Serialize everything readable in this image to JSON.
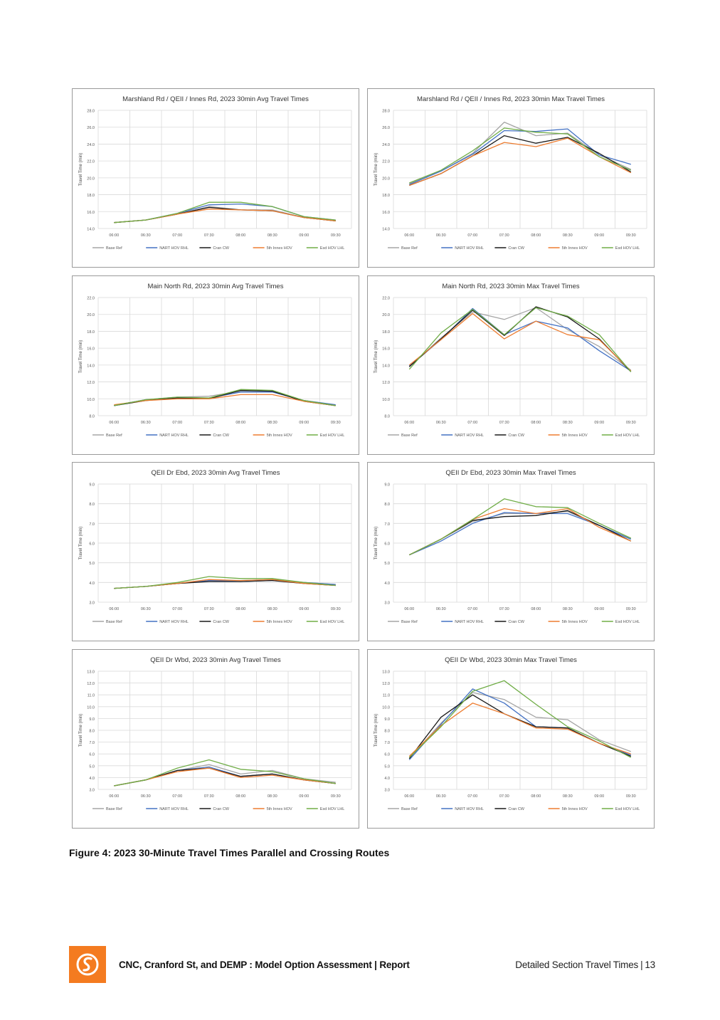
{
  "legend_colors": {
    "Base Ref": "#a5a5a5",
    "NART HOV RHL": "#4472c4",
    "Cran CW": "#1a1a1a",
    "5th Innes HOV": "#ed7d31",
    "Esd HOV LHL": "#70ad47"
  },
  "chart_data": [
    {
      "type": "line",
      "title": "Marshland Rd / QEII / Innes Rd, 2023 30min Avg Travel Times",
      "ylabel": "Travel Time (min)",
      "categories": [
        "06:00",
        "06:30",
        "07:00",
        "07:30",
        "08:00",
        "08:30",
        "09:00",
        "09:30"
      ],
      "ylim": [
        14,
        28
      ],
      "ystep": 2,
      "ydecimals": 1,
      "series": [
        {
          "name": "Base Ref",
          "values": [
            14.7,
            15.0,
            15.7,
            16.6,
            16.2,
            16.2,
            15.3,
            14.9
          ]
        },
        {
          "name": "NART HOV RHL",
          "values": [
            14.7,
            15.0,
            15.8,
            16.8,
            16.9,
            16.6,
            15.4,
            15.0
          ]
        },
        {
          "name": "Cran CW",
          "values": [
            14.7,
            15.0,
            15.7,
            16.5,
            16.2,
            16.1,
            15.3,
            14.9
          ]
        },
        {
          "name": "5th Innes HOV",
          "values": [
            14.7,
            15.0,
            15.7,
            16.3,
            16.2,
            16.1,
            15.3,
            14.9
          ]
        },
        {
          "name": "Esd HOV LHL",
          "values": [
            14.7,
            15.0,
            15.8,
            17.1,
            17.1,
            16.6,
            15.4,
            15.0
          ]
        }
      ]
    },
    {
      "type": "line",
      "title": "Marshland Rd / QEII / Innes Rd, 2023 30min Max Travel Times",
      "ylabel": "Travel Time (min)",
      "categories": [
        "06:00",
        "06:30",
        "07:00",
        "07:30",
        "08:00",
        "08:30",
        "09:00",
        "09:30"
      ],
      "ylim": [
        14,
        28
      ],
      "ystep": 2,
      "ydecimals": 1,
      "series": [
        {
          "name": "Base Ref",
          "values": [
            19.3,
            20.8,
            22.9,
            26.6,
            25.0,
            25.3,
            22.7,
            21.0
          ]
        },
        {
          "name": "NART HOV RHL",
          "values": [
            19.2,
            20.8,
            22.8,
            25.6,
            25.5,
            25.8,
            22.7,
            21.6
          ]
        },
        {
          "name": "Cran CW",
          "values": [
            19.1,
            20.5,
            22.6,
            25.0,
            24.1,
            24.8,
            22.9,
            20.7
          ]
        },
        {
          "name": "5th Innes HOV",
          "values": [
            19.1,
            20.5,
            22.6,
            24.2,
            23.7,
            24.7,
            22.5,
            20.6
          ]
        },
        {
          "name": "Esd HOV LHL",
          "values": [
            19.4,
            20.9,
            23.2,
            25.9,
            25.4,
            25.2,
            22.5,
            20.9
          ]
        }
      ]
    },
    {
      "type": "line",
      "title": "Main North Rd, 2023 30min Avg Travel Times",
      "ylabel": "Travel Time (min)",
      "categories": [
        "06:00",
        "06:30",
        "07:00",
        "07:30",
        "08:00",
        "08:30",
        "09:00",
        "09:30"
      ],
      "ylim": [
        8,
        22
      ],
      "ystep": 2,
      "ydecimals": 1,
      "series": [
        {
          "name": "Base Ref",
          "values": [
            9.2,
            9.9,
            10.2,
            10.3,
            10.9,
            10.9,
            9.8,
            9.2
          ]
        },
        {
          "name": "NART HOV RHL",
          "values": [
            9.2,
            9.9,
            10.1,
            10.1,
            10.8,
            10.8,
            9.8,
            9.3
          ]
        },
        {
          "name": "Cran CW",
          "values": [
            9.2,
            9.8,
            10.1,
            10.0,
            11.0,
            10.9,
            9.7,
            9.2
          ]
        },
        {
          "name": "5th Innes HOV",
          "values": [
            9.3,
            9.8,
            10.0,
            10.0,
            10.5,
            10.5,
            9.7,
            9.2
          ]
        },
        {
          "name": "Esd HOV LHL",
          "values": [
            9.2,
            9.9,
            10.2,
            10.1,
            11.1,
            11.0,
            9.8,
            9.2
          ]
        }
      ]
    },
    {
      "type": "line",
      "title": "Main North Rd, 2023 30min Max Travel Times",
      "ylabel": "Travel Time (min)",
      "categories": [
        "06:00",
        "06:30",
        "07:00",
        "07:30",
        "08:00",
        "08:30",
        "09:00",
        "09:30"
      ],
      "ylim": [
        8,
        22
      ],
      "ystep": 2,
      "ydecimals": 1,
      "series": [
        {
          "name": "Base Ref",
          "values": [
            13.8,
            17.2,
            20.3,
            19.4,
            20.8,
            18.2,
            16.2,
            13.4
          ]
        },
        {
          "name": "NART HOV RHL",
          "values": [
            13.9,
            17.0,
            20.7,
            17.6,
            19.2,
            18.4,
            15.7,
            13.3
          ]
        },
        {
          "name": "Cran CW",
          "values": [
            13.8,
            17.1,
            20.5,
            17.5,
            20.9,
            19.7,
            17.1,
            13.2
          ]
        },
        {
          "name": "5th Innes HOV",
          "values": [
            14.0,
            17.0,
            20.1,
            17.1,
            19.2,
            17.6,
            17.0,
            13.3
          ]
        },
        {
          "name": "Esd HOV LHL",
          "values": [
            13.5,
            17.8,
            20.6,
            17.6,
            20.8,
            19.8,
            17.6,
            13.2
          ]
        }
      ]
    },
    {
      "type": "line",
      "title": "QEII Dr Ebd, 2023 30min Avg Travel Times",
      "ylabel": "Travel Time (min)",
      "categories": [
        "06:00",
        "06:30",
        "07:00",
        "07:30",
        "08:00",
        "08:30",
        "09:00",
        "09:30"
      ],
      "ylim": [
        3,
        9
      ],
      "ystep": 1,
      "ydecimals": 1,
      "series": [
        {
          "name": "Base Ref",
          "values": [
            3.7,
            3.8,
            3.95,
            4.1,
            4.1,
            4.15,
            4.0,
            3.9
          ]
        },
        {
          "name": "NART HOV RHL",
          "values": [
            3.7,
            3.8,
            3.95,
            4.1,
            4.05,
            4.1,
            4.0,
            3.9
          ]
        },
        {
          "name": "Cran CW",
          "values": [
            3.7,
            3.8,
            3.95,
            4.05,
            4.05,
            4.1,
            3.95,
            3.85
          ]
        },
        {
          "name": "5th Innes HOV",
          "values": [
            3.7,
            3.8,
            3.95,
            4.15,
            4.1,
            4.15,
            3.95,
            3.85
          ]
        },
        {
          "name": "Esd HOV LHL",
          "values": [
            3.7,
            3.8,
            4.0,
            4.3,
            4.2,
            4.2,
            4.0,
            3.85
          ]
        }
      ]
    },
    {
      "type": "line",
      "title": "QEII Dr Ebd, 2023 30min Max Travel Times",
      "ylabel": "Travel Time (min)",
      "categories": [
        "06:00",
        "06:30",
        "07:00",
        "07:30",
        "08:00",
        "08:30",
        "09:00",
        "09:30"
      ],
      "ylim": [
        3,
        9
      ],
      "ystep": 1,
      "ydecimals": 1,
      "series": [
        {
          "name": "Base Ref",
          "values": [
            5.4,
            6.2,
            7.1,
            7.5,
            7.5,
            7.6,
            6.9,
            6.2
          ]
        },
        {
          "name": "NART HOV RHL",
          "values": [
            5.4,
            6.1,
            7.0,
            7.55,
            7.5,
            7.5,
            6.9,
            6.2
          ]
        },
        {
          "name": "Cran CW",
          "values": [
            5.4,
            6.2,
            7.15,
            7.35,
            7.4,
            7.65,
            6.9,
            6.1
          ]
        },
        {
          "name": "5th Innes HOV",
          "values": [
            5.4,
            6.2,
            7.2,
            7.75,
            7.5,
            7.75,
            6.8,
            6.1
          ]
        },
        {
          "name": "Esd HOV LHL",
          "values": [
            5.4,
            6.2,
            7.2,
            8.25,
            7.85,
            7.8,
            7.0,
            6.25
          ]
        }
      ]
    },
    {
      "type": "line",
      "title": "QEII Dr Wbd, 2023 30min Avg Travel Times",
      "ylabel": "Travel Time (min)",
      "categories": [
        "06:00",
        "06:30",
        "07:00",
        "07:30",
        "08:00",
        "08:30",
        "09:00",
        "09:30"
      ],
      "ylim": [
        3,
        13
      ],
      "ystep": 1,
      "ydecimals": 1,
      "series": [
        {
          "name": "Base Ref",
          "values": [
            3.3,
            3.8,
            4.6,
            5.1,
            4.3,
            4.6,
            3.9,
            3.6
          ]
        },
        {
          "name": "NART HOV RHL",
          "values": [
            3.3,
            3.8,
            4.6,
            4.9,
            4.1,
            4.3,
            3.8,
            3.5
          ]
        },
        {
          "name": "Cran CW",
          "values": [
            3.3,
            3.8,
            4.6,
            4.8,
            4.1,
            4.3,
            3.8,
            3.5
          ]
        },
        {
          "name": "5th Innes HOV",
          "values": [
            3.3,
            3.8,
            4.5,
            4.8,
            4.0,
            4.2,
            3.8,
            3.5
          ]
        },
        {
          "name": "Esd HOV LHL",
          "values": [
            3.3,
            3.8,
            4.8,
            5.5,
            4.7,
            4.5,
            3.9,
            3.5
          ]
        }
      ]
    },
    {
      "type": "line",
      "title": "QEII Dr Wbd, 2023 30min Max Travel Times",
      "ylabel": "Travel Time (min)",
      "categories": [
        "06:00",
        "06:30",
        "07:00",
        "07:30",
        "08:00",
        "08:30",
        "09:00",
        "09:30"
      ],
      "ylim": [
        3,
        13
      ],
      "ystep": 1,
      "ydecimals": 1,
      "series": [
        {
          "name": "Base Ref",
          "values": [
            5.6,
            8.6,
            11.2,
            10.6,
            9.1,
            8.9,
            7.2,
            6.2
          ]
        },
        {
          "name": "NART HOV RHL",
          "values": [
            5.5,
            8.5,
            11.5,
            10.3,
            8.3,
            8.2,
            6.9,
            5.9
          ]
        },
        {
          "name": "Cran CW",
          "values": [
            5.6,
            9.1,
            11.0,
            9.4,
            8.3,
            8.2,
            6.9,
            5.8
          ]
        },
        {
          "name": "5th Innes HOV",
          "values": [
            5.8,
            8.4,
            10.3,
            9.4,
            8.2,
            8.1,
            6.9,
            6.0
          ]
        },
        {
          "name": "Esd HOV LHL",
          "values": [
            5.7,
            8.3,
            11.3,
            12.2,
            10.2,
            8.3,
            7.1,
            5.7
          ]
        }
      ]
    }
  ],
  "figure_caption": "Figure 4: 2023 30-Minute Travel Times Parallel and Crossing Routes",
  "footer": {
    "logo_icon": "stantec-logo-icon",
    "report_title": "CNC, Cranford St, and DEMP : Model Option Assessment | Report",
    "section_title": "Detailed Section Travel Times",
    "separator": "|",
    "page_number": "13"
  }
}
